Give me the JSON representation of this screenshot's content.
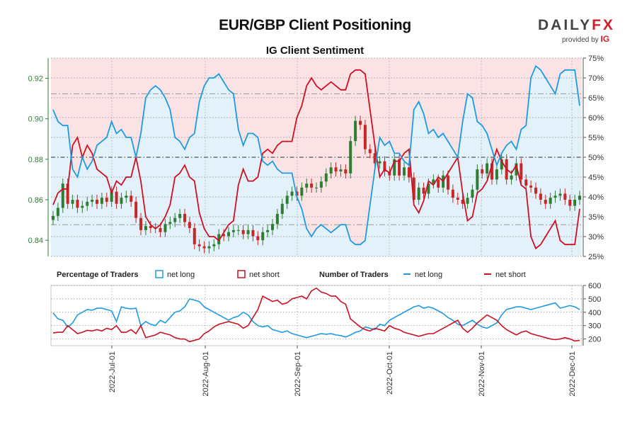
{
  "header": {
    "title": "EUR/GBP Client Positioning",
    "subtitle": "IG Client Sentiment",
    "logo_text": "DAILYFX",
    "logo_sub": "provided by",
    "logo_ig": "IG"
  },
  "legend": {
    "pct_heading": "Percentage of Traders",
    "num_heading": "Number of Traders",
    "net_long": "net long",
    "net_short": "net short"
  },
  "colors": {
    "long": "#1e9be0",
    "short": "#cc1122",
    "up_candle": "#2e7d32",
    "down_candle": "#c62828",
    "long_fill": "#e3f1fa",
    "short_fill": "#fbe3e5",
    "left_axis": "#2e7d32"
  },
  "chart_data": [
    {
      "type": "candlestick+line",
      "title": "IG Client Sentiment",
      "price_axis": {
        "ylim": [
          0.832,
          0.93
        ],
        "ticks": [
          "0.84",
          "0.86",
          "0.88",
          "0.90",
          "0.92"
        ]
      },
      "pct_axis": {
        "ylim": [
          25,
          75
        ],
        "ticks": [
          "25%",
          "30%",
          "35%",
          "40%",
          "45%",
          "50%",
          "55%",
          "60%",
          "65%",
          "70%",
          "75%"
        ]
      },
      "x_labels": [
        "2022-Jul-01",
        "2022-Aug-01",
        "2022-Sep-01",
        "2022-Oct-01",
        "2022-Nov-01",
        "2022-Dec-01"
      ],
      "price_close": [
        0.852,
        0.856,
        0.868,
        0.858,
        0.86,
        0.856,
        0.857,
        0.859,
        0.86,
        0.858,
        0.861,
        0.859,
        0.864,
        0.858,
        0.861,
        0.862,
        0.859,
        0.851,
        0.845,
        0.847,
        0.846,
        0.846,
        0.844,
        0.848,
        0.849,
        0.851,
        0.853,
        0.849,
        0.846,
        0.838,
        0.837,
        0.836,
        0.837,
        0.838,
        0.843,
        0.842,
        0.844,
        0.845,
        0.845,
        0.843,
        0.845,
        0.842,
        0.84,
        0.844,
        0.845,
        0.848,
        0.853,
        0.858,
        0.862,
        0.864,
        0.862,
        0.866,
        0.868,
        0.866,
        0.866,
        0.869,
        0.873,
        0.876,
        0.874,
        0.875,
        0.873,
        0.889,
        0.899,
        0.897,
        0.885,
        0.883,
        0.878,
        0.879,
        0.874,
        0.872,
        0.88,
        0.872,
        0.876,
        0.871,
        0.86,
        0.866,
        0.863,
        0.868,
        0.87,
        0.866,
        0.872,
        0.865,
        0.861,
        0.86,
        0.858,
        0.861,
        0.865,
        0.875,
        0.873,
        0.878,
        0.87,
        0.875,
        0.88,
        0.87,
        0.872,
        0.878,
        0.87,
        0.867,
        0.866,
        0.863,
        0.86,
        0.858,
        0.861,
        0.862,
        0.863,
        0.86,
        0.857,
        0.86,
        0.862
      ],
      "net_long_pct": [
        62,
        59,
        58,
        58,
        47,
        45,
        50,
        47,
        49,
        53,
        54,
        55,
        59,
        56,
        57,
        55,
        55,
        50,
        56,
        65,
        67,
        68,
        67,
        65,
        62,
        55,
        54,
        52,
        55,
        56,
        64,
        68,
        70,
        70,
        71,
        69,
        67,
        66,
        57,
        53,
        56,
        56,
        55,
        49,
        48,
        49,
        47,
        46,
        46,
        46,
        40,
        37,
        32,
        30,
        32,
        33,
        32,
        31,
        32,
        33,
        33,
        29,
        28,
        28,
        29,
        38,
        47,
        55,
        53,
        54,
        51,
        51,
        49,
        48,
        62,
        64,
        61,
        56,
        57,
        55,
        56,
        54,
        52,
        50,
        59,
        66,
        65,
        59,
        58,
        56,
        52,
        48,
        51,
        53,
        54,
        52,
        57,
        58,
        70,
        73,
        72,
        70,
        68,
        66,
        71,
        72,
        72,
        72,
        63
      ]
    },
    {
      "type": "line",
      "title": "Number of Traders",
      "ylim": [
        150,
        600
      ],
      "ticks": [
        "200",
        "300",
        "400",
        "500",
        "600"
      ],
      "net_long": [
        395,
        350,
        340,
        290,
        320,
        380,
        400,
        420,
        415,
        430,
        430,
        420,
        410,
        330,
        440,
        430,
        425,
        430,
        300,
        330,
        310,
        300,
        340,
        320,
        360,
        400,
        410,
        440,
        500,
        490,
        480,
        440,
        420,
        400,
        380,
        360,
        340,
        360,
        370,
        400,
        380,
        330,
        300,
        290,
        300,
        270,
        260,
        250,
        260,
        240,
        230,
        220,
        210,
        220,
        230,
        240,
        235,
        240,
        230,
        225,
        215,
        230,
        250,
        260,
        290,
        280,
        270,
        310,
        300,
        340,
        360,
        380,
        400,
        420,
        440,
        450,
        430,
        440,
        430,
        410,
        390,
        360,
        340,
        310,
        300,
        320,
        340,
        310,
        290,
        280,
        300,
        320,
        380,
        420,
        430,
        440,
        440,
        430,
        420,
        430,
        440,
        450,
        460,
        470,
        430,
        440,
        450,
        440,
        420
      ],
      "net_short": [
        245,
        250,
        250,
        300,
        270,
        240,
        250,
        265,
        260,
        270,
        260,
        280,
        270,
        300,
        250,
        250,
        270,
        240,
        300,
        210,
        220,
        230,
        250,
        240,
        230,
        210,
        200,
        200,
        180,
        190,
        200,
        240,
        260,
        290,
        310,
        320,
        330,
        320,
        310,
        280,
        300,
        360,
        420,
        520,
        500,
        480,
        490,
        460,
        470,
        500,
        510,
        520,
        500,
        560,
        580,
        550,
        540,
        520,
        520,
        480,
        460,
        350,
        320,
        290,
        270,
        260,
        280,
        270,
        260,
        300,
        280,
        270,
        250,
        240,
        230,
        220,
        230,
        240,
        240,
        260,
        280,
        300,
        320,
        340,
        280,
        250,
        280,
        320,
        350,
        380,
        360,
        340,
        300,
        270,
        250,
        230,
        250,
        260,
        240,
        230,
        220,
        210,
        200,
        195,
        200,
        210,
        200,
        185,
        190
      ]
    }
  ]
}
